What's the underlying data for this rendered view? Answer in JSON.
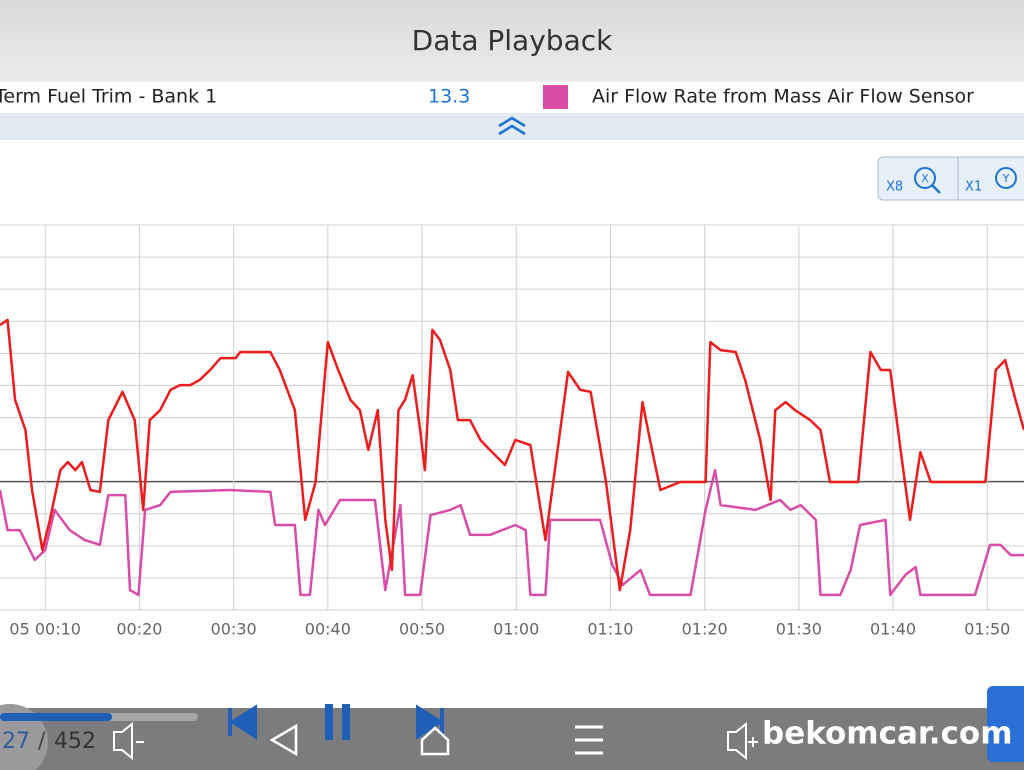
{
  "header": {
    "title": "Data Playback"
  },
  "zoom": {
    "x": "X8",
    "y": "X1"
  },
  "chart_data": {
    "type": "line",
    "series": [
      {
        "name": "Term Fuel Trim - Bank 1",
        "current_value": 13.3,
        "color": "#ee1c1c",
        "x": [
          5.2,
          6.0,
          6.8,
          7.9,
          8.6,
          9.7,
          10.5,
          11.6,
          12.4,
          13.2,
          13.9,
          14.8,
          15.8,
          16.7,
          18.2,
          19.5,
          20.4,
          21.1,
          22.2,
          23.3,
          24.3,
          25.4,
          26.4,
          27.5,
          28.6,
          30.2,
          30.7,
          33.9,
          34.9,
          36.5,
          37.6,
          38.7,
          40.0,
          41.1,
          42.4,
          43.4,
          44.3,
          45.3,
          46.1,
          46.8,
          47.5,
          48.2,
          49.0,
          49.8,
          50.3,
          51.1,
          51.9,
          53.0,
          53.8,
          55.1,
          56.2,
          57.2,
          58.8,
          59.9,
          61.5,
          63.1,
          64.1,
          65.5,
          66.8,
          67.9,
          69.5,
          71.0,
          72.1,
          73.4,
          74.2,
          75.3,
          77.4,
          80.1,
          80.6,
          81.7,
          83.3,
          84.3,
          85.9,
          87.0,
          87.5,
          88.6,
          89.6,
          91.2,
          92.3,
          93.3,
          96.3,
          97.6,
          98.7,
          99.7,
          100.8,
          101.8,
          102.9,
          104.0,
          109.8,
          110.9,
          111.9,
          113.0,
          113.9
        ],
        "values": [
          88.8,
          90.4,
          65.5,
          56.1,
          37.4,
          18.7,
          28.1,
          43.6,
          46.1,
          43.6,
          46.1,
          37.4,
          36.8,
          59.2,
          68.0,
          59.2,
          31.2,
          59.2,
          62.3,
          68.6,
          70.1,
          70.1,
          71.7,
          74.8,
          78.5,
          78.5,
          80.4,
          80.4,
          74.8,
          62.3,
          28.1,
          39.9,
          83.5,
          74.8,
          65.5,
          62.3,
          49.9,
          62.3,
          28.1,
          12.5,
          62.3,
          65.5,
          73.2,
          56.1,
          43.6,
          87.3,
          84.2,
          74.8,
          59.2,
          59.2,
          53.0,
          49.9,
          45.2,
          53.0,
          51.4,
          21.8,
          43.6,
          74.2,
          68.6,
          68.0,
          40.5,
          6.2,
          24.9,
          64.8,
          53.0,
          37.4,
          39.9,
          39.9,
          83.5,
          81.0,
          80.4,
          71.7,
          53.0,
          34.3,
          62.3,
          64.8,
          62.3,
          59.2,
          56.1,
          39.9,
          39.9,
          80.4,
          74.8,
          74.8,
          49.9,
          28.1,
          49.2,
          39.9,
          39.9,
          74.8,
          77.9,
          65.5,
          56.1
        ]
      },
      {
        "name": "Air Flow Rate from Mass Air Flow Sensor",
        "color": "#d94ca8",
        "x": [
          5.2,
          6.0,
          7.3,
          8.9,
          10.0,
          11.0,
          12.6,
          14.2,
          15.8,
          16.7,
          18.5,
          19.0,
          19.9,
          20.6,
          22.2,
          23.3,
          29.6,
          33.9,
          34.4,
          36.5,
          37.1,
          38.1,
          39.0,
          39.7,
          41.3,
          45.0,
          46.1,
          47.7,
          48.2,
          49.8,
          50.9,
          53.0,
          54.1,
          55.1,
          57.2,
          59.9,
          61.0,
          61.5,
          63.1,
          63.6,
          68.9,
          70.2,
          71.3,
          73.2,
          74.2,
          78.5,
          80.1,
          81.1,
          81.7,
          85.4,
          88.0,
          89.1,
          90.2,
          91.8,
          92.3,
          94.4,
          95.5,
          96.5,
          99.2,
          99.7,
          101.3,
          102.4,
          102.9,
          108.7,
          110.3,
          111.4,
          112.5,
          113.9
        ],
        "values": [
          37.4,
          24.9,
          24.9,
          15.6,
          18.7,
          31.2,
          24.9,
          21.8,
          20.3,
          35.8,
          35.8,
          6.2,
          4.7,
          31.2,
          32.7,
          36.8,
          37.4,
          36.8,
          26.5,
          26.5,
          4.7,
          4.7,
          31.2,
          26.5,
          34.3,
          34.3,
          6.2,
          32.7,
          4.7,
          4.7,
          29.6,
          31.2,
          32.7,
          23.4,
          23.4,
          26.5,
          24.9,
          4.7,
          4.7,
          28.1,
          28.1,
          14.0,
          7.8,
          12.5,
          4.7,
          4.7,
          31.2,
          43.6,
          32.7,
          31.2,
          34.3,
          31.2,
          32.7,
          28.1,
          4.7,
          4.7,
          12.5,
          26.5,
          28.1,
          4.7,
          10.9,
          13.4,
          4.7,
          4.7,
          20.3,
          20.3,
          17.1,
          17.1
        ]
      }
    ],
    "xlim": [
      5.2,
      113.9
    ],
    "xticks": [
      {
        "value": 10,
        "label": "05 00:10"
      },
      {
        "value": 20,
        "label": "00:20"
      },
      {
        "value": 30,
        "label": "00:30"
      },
      {
        "value": 40,
        "label": "00:40"
      },
      {
        "value": 50,
        "label": "00:50"
      },
      {
        "value": 60,
        "label": "01:00"
      },
      {
        "value": 70,
        "label": "01:10"
      },
      {
        "value": 80,
        "label": "01:20"
      },
      {
        "value": 90,
        "label": "01:30"
      },
      {
        "value": 100,
        "label": "01:40"
      },
      {
        "value": 110,
        "label": "01:50"
      }
    ],
    "ylim": [
      0,
      120
    ],
    "yticks": [
      0,
      10,
      20,
      30,
      40,
      50,
      60,
      70,
      80,
      90,
      100,
      110,
      120
    ],
    "reference_line": 40,
    "grid": true
  },
  "player": {
    "position": 27,
    "separator": "/",
    "total": 452
  },
  "watermark": "bekomcar.com"
}
